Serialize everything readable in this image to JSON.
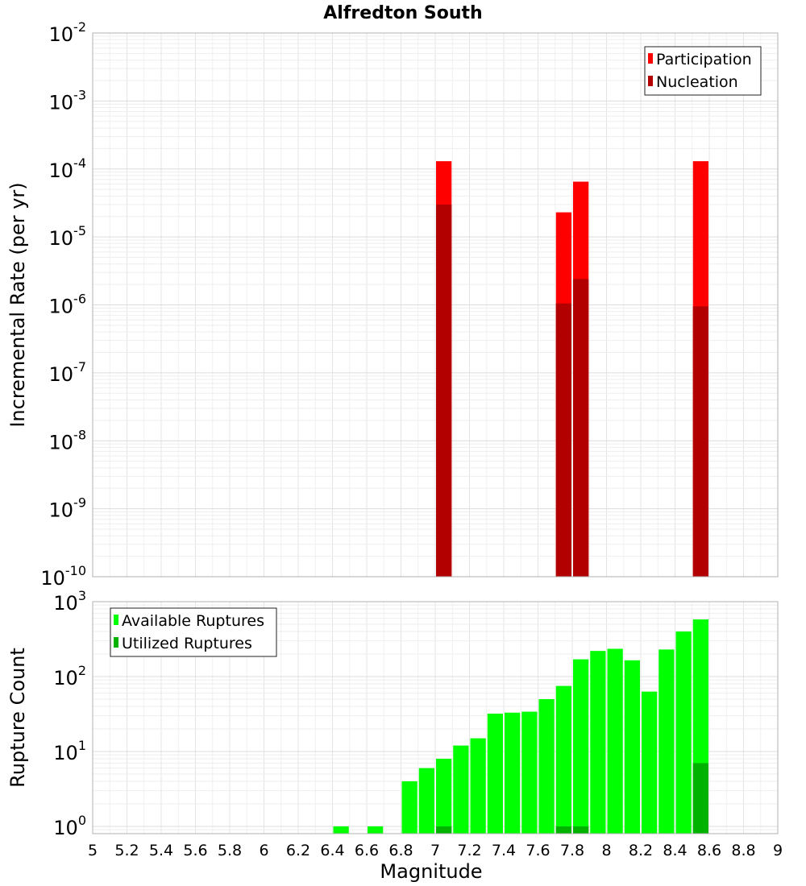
{
  "chart_data": [
    {
      "type": "bar",
      "title": "Alfredton South",
      "ylabel": "Incremental Rate (per yr)",
      "xlabel": "",
      "xlim": [
        5,
        9
      ],
      "ylim": [
        1e-10,
        0.01
      ],
      "yscale": "log",
      "y_ticks": [
        {
          "base": "10",
          "exp": "-2",
          "value": 0.01
        },
        {
          "base": "10",
          "exp": "-3",
          "value": 0.001
        },
        {
          "base": "10",
          "exp": "-4",
          "value": 0.0001
        },
        {
          "base": "10",
          "exp": "-5",
          "value": 1e-05
        },
        {
          "base": "10",
          "exp": "-6",
          "value": 1e-06
        },
        {
          "base": "10",
          "exp": "-7",
          "value": 1e-07
        },
        {
          "base": "10",
          "exp": "-8",
          "value": 1e-08
        },
        {
          "base": "10",
          "exp": "-9",
          "value": 1e-09
        },
        {
          "base": "10",
          "exp": "-10",
          "value": 1e-10
        }
      ],
      "legend_position": "top-right",
      "grid": true,
      "series": [
        {
          "name": "Participation",
          "color": "#ff0000",
          "points": [
            {
              "x": 7.05,
              "y": 0.00013
            },
            {
              "x": 7.75,
              "y": 2.3e-05
            },
            {
              "x": 7.85,
              "y": 6.5e-05
            },
            {
              "x": 8.55,
              "y": 0.00013
            }
          ]
        },
        {
          "name": "Nucleation",
          "color": "#b20000",
          "points": [
            {
              "x": 7.05,
              "y": 3e-05
            },
            {
              "x": 7.75,
              "y": 1.05e-06
            },
            {
              "x": 7.85,
              "y": 2.4e-06
            },
            {
              "x": 8.55,
              "y": 9.5e-07
            }
          ]
        }
      ]
    },
    {
      "type": "bar",
      "title": "",
      "ylabel": "Rupture Count",
      "xlabel": "Magnitude",
      "xlim": [
        5,
        9
      ],
      "ylim": [
        0.8,
        1000
      ],
      "yscale": "log",
      "y_ticks": [
        {
          "base": "10",
          "exp": "3",
          "value": 1000
        },
        {
          "base": "10",
          "exp": "2",
          "value": 100
        },
        {
          "base": "10",
          "exp": "1",
          "value": 10
        },
        {
          "base": "10",
          "exp": "0",
          "value": 1
        }
      ],
      "x_ticks": [
        "5",
        "5.2",
        "5.4",
        "5.6",
        "5.8",
        "6",
        "6.2",
        "6.4",
        "6.6",
        "6.8",
        "7",
        "7.2",
        "7.4",
        "7.6",
        "7.8",
        "8",
        "8.2",
        "8.4",
        "8.6",
        "8.8",
        "9"
      ],
      "legend_position": "top-left",
      "grid": true,
      "series": [
        {
          "name": "Available Ruptures",
          "color": "#00ff00",
          "points": [
            {
              "x": 6.45,
              "y": 1
            },
            {
              "x": 6.65,
              "y": 1
            },
            {
              "x": 6.85,
              "y": 4
            },
            {
              "x": 6.95,
              "y": 6
            },
            {
              "x": 7.05,
              "y": 8
            },
            {
              "x": 7.15,
              "y": 12
            },
            {
              "x": 7.25,
              "y": 15
            },
            {
              "x": 7.35,
              "y": 32
            },
            {
              "x": 7.45,
              "y": 33
            },
            {
              "x": 7.55,
              "y": 34
            },
            {
              "x": 7.65,
              "y": 50
            },
            {
              "x": 7.75,
              "y": 75
            },
            {
              "x": 7.85,
              "y": 170
            },
            {
              "x": 7.95,
              "y": 220
            },
            {
              "x": 8.05,
              "y": 235
            },
            {
              "x": 8.15,
              "y": 165
            },
            {
              "x": 8.25,
              "y": 63
            },
            {
              "x": 8.35,
              "y": 230
            },
            {
              "x": 8.45,
              "y": 400
            },
            {
              "x": 8.55,
              "y": 580
            }
          ]
        },
        {
          "name": "Utilized Ruptures",
          "color": "#00b200",
          "points": [
            {
              "x": 7.05,
              "y": 1
            },
            {
              "x": 7.75,
              "y": 1
            },
            {
              "x": 7.85,
              "y": 1
            },
            {
              "x": 8.55,
              "y": 7
            }
          ]
        }
      ]
    }
  ]
}
